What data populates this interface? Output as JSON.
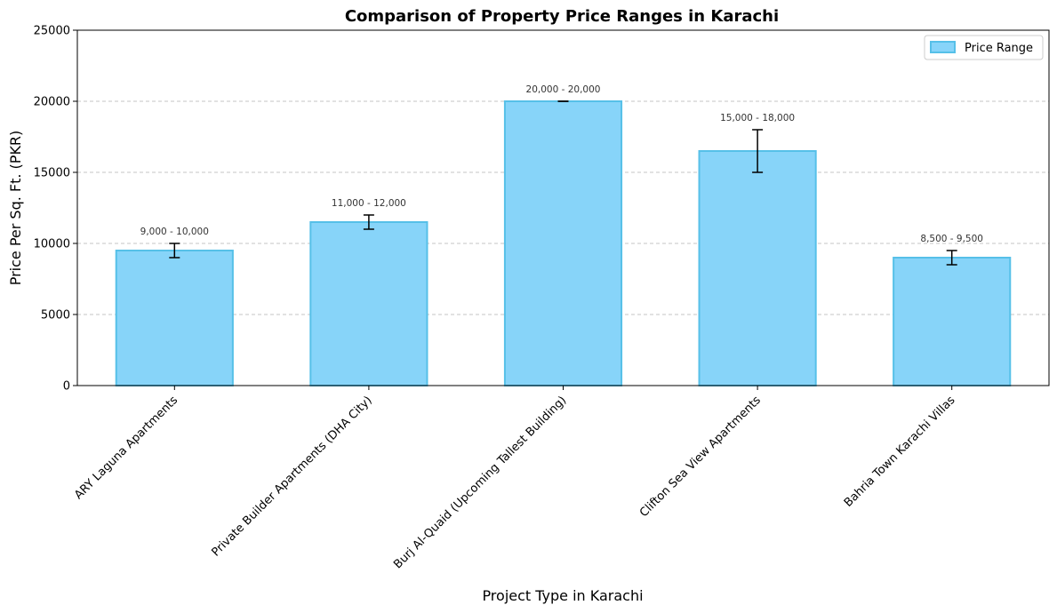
{
  "chart_data": {
    "type": "bar",
    "title": "Comparison of Property Price Ranges in Karachi",
    "xlabel": "Project Type in Karachi",
    "ylabel": "Price Per Sq. Ft. (PKR)",
    "ylim": [
      0,
      25000
    ],
    "yticks": [
      0,
      5000,
      10000,
      15000,
      20000,
      25000
    ],
    "grid": "y-dashed",
    "legend": {
      "placement": "top-right",
      "entries": [
        "Price Range"
      ]
    },
    "colors": {
      "bar_fill": "#87d4f9",
      "bar_edge": "#56c0e8",
      "error_bar": "#000000",
      "grid": "#c4c4c4"
    },
    "categories": [
      "ARY Laguna Apartments",
      "Private Builder Apartments (DHA City)",
      "Burj Al-Quaid (Upcoming Tallest Building)",
      "Clifton Sea View Apartments",
      "Bahria Town Karachi Villas"
    ],
    "series": [
      {
        "name": "Price Range",
        "values": [
          9500,
          11500,
          20000,
          16500,
          9000
        ]
      }
    ],
    "ranges": [
      {
        "low": 9000,
        "high": 10000
      },
      {
        "low": 11000,
        "high": 12000
      },
      {
        "low": 20000,
        "high": 20000
      },
      {
        "low": 15000,
        "high": 18000
      },
      {
        "low": 8500,
        "high": 9500
      }
    ],
    "data_labels": [
      "9,000 - 10,000",
      "11,000 - 12,000",
      "20,000 - 20,000",
      "15,000 - 18,000",
      "8,500 - 9,500"
    ]
  }
}
